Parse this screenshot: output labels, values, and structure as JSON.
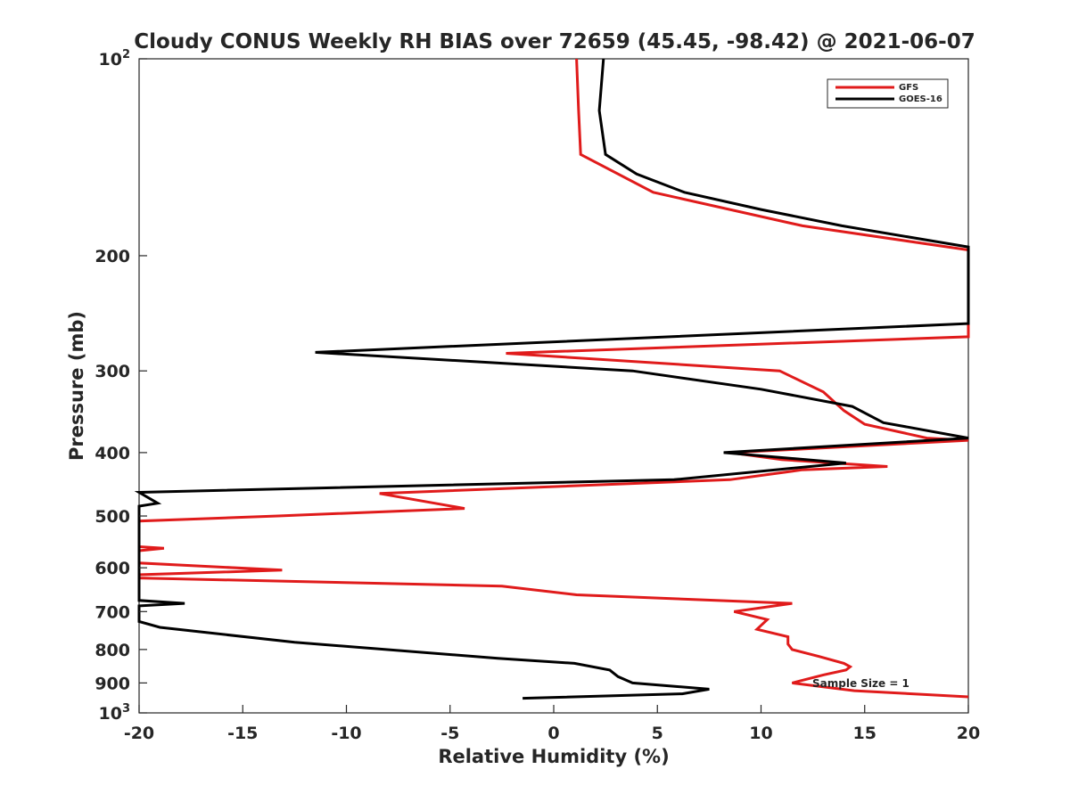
{
  "chart_data": {
    "type": "line",
    "title": "Cloudy CONUS Weekly RH BIAS over 72659 (45.45, -98.42) @ 2021-06-07",
    "xlabel": "Relative Humidity (%)",
    "ylabel": "Pressure (mb)",
    "xlim": [
      -20,
      20
    ],
    "ylim": [
      100,
      1000
    ],
    "yscale": "log",
    "yreversed": true,
    "xticks": [
      "-20",
      "-15",
      "-10",
      "-5",
      "0",
      "5",
      "10",
      "15",
      "20"
    ],
    "xtick_values": [
      -20,
      -15,
      -10,
      -5,
      0,
      5,
      10,
      15,
      20
    ],
    "yticks": [
      {
        "value": 100,
        "base": "10",
        "exp": "2"
      },
      {
        "value": 200,
        "label": "200"
      },
      {
        "value": 300,
        "label": "300"
      },
      {
        "value": 400,
        "label": "400"
      },
      {
        "value": 500,
        "label": "500"
      },
      {
        "value": 600,
        "label": "600"
      },
      {
        "value": 700,
        "label": "700"
      },
      {
        "value": 800,
        "label": "800"
      },
      {
        "value": 900,
        "label": "900"
      },
      {
        "value": 1000,
        "base": "10",
        "exp": "3"
      }
    ],
    "grid": false,
    "legend_position": "top-right",
    "annotation": "Sample Size = 1",
    "series": [
      {
        "name": "GFS",
        "color": "#e01b1b",
        "points": [
          [
            1.1,
            100
          ],
          [
            1.2,
            120
          ],
          [
            1.3,
            140
          ],
          [
            4.8,
            160
          ],
          [
            12.0,
            180
          ],
          [
            20.0,
            196
          ],
          [
            20.0,
            266
          ],
          [
            -2.3,
            282
          ],
          [
            10.9,
            300
          ],
          [
            13.0,
            323
          ],
          [
            14.0,
            345
          ],
          [
            15.0,
            362
          ],
          [
            18.0,
            380
          ],
          [
            20.0,
            383
          ],
          [
            12.0,
            395
          ],
          [
            8.5,
            400
          ],
          [
            11.0,
            410
          ],
          [
            16.1,
            420
          ],
          [
            12.0,
            425
          ],
          [
            8.5,
            440
          ],
          [
            -8.4,
            462
          ],
          [
            -4.3,
            487
          ],
          [
            -13.3,
            500
          ],
          [
            -20.0,
            509
          ],
          [
            -20.0,
            557
          ],
          [
            -18.8,
            560
          ],
          [
            -20.0,
            565
          ],
          [
            -20.0,
            590
          ],
          [
            -13.1,
            605
          ],
          [
            -20.0,
            615
          ],
          [
            -20.0,
            622
          ],
          [
            -2.5,
            640
          ],
          [
            1.1,
            660
          ],
          [
            11.5,
            680
          ],
          [
            8.7,
            700
          ],
          [
            10.3,
            720
          ],
          [
            9.8,
            745
          ],
          [
            11.3,
            765
          ],
          [
            11.3,
            785
          ],
          [
            11.5,
            800
          ],
          [
            12.8,
            820
          ],
          [
            14.0,
            840
          ],
          [
            14.3,
            850
          ],
          [
            14.1,
            860
          ],
          [
            13.0,
            875
          ],
          [
            11.5,
            900
          ],
          [
            14.5,
            925
          ],
          [
            20.0,
            945
          ]
        ]
      },
      {
        "name": "GOES-16",
        "color": "#000000",
        "points": [
          [
            2.4,
            100
          ],
          [
            2.2,
            120
          ],
          [
            2.5,
            140
          ],
          [
            4.0,
            150
          ],
          [
            6.3,
            160
          ],
          [
            10.0,
            170
          ],
          [
            13.9,
            180
          ],
          [
            20.0,
            194
          ],
          [
            20.0,
            254
          ],
          [
            -11.5,
            281
          ],
          [
            3.8,
            300
          ],
          [
            10.0,
            320
          ],
          [
            14.4,
            340
          ],
          [
            15.9,
            360
          ],
          [
            20.0,
            380
          ],
          [
            8.2,
            400
          ],
          [
            14.1,
            415
          ],
          [
            5.8,
            440
          ],
          [
            -20.0,
            460
          ],
          [
            -19.1,
            478
          ],
          [
            -20.0,
            483
          ],
          [
            -20.0,
            673
          ],
          [
            -17.8,
            680
          ],
          [
            -20.0,
            686
          ],
          [
            -20.0,
            694
          ],
          [
            -20.0,
            725
          ],
          [
            -19.0,
            740
          ],
          [
            -12.5,
            780
          ],
          [
            -2.7,
            825
          ],
          [
            1.0,
            840
          ],
          [
            2.7,
            860
          ],
          [
            3.1,
            880
          ],
          [
            3.8,
            900
          ],
          [
            7.5,
            920
          ],
          [
            6.2,
            935
          ],
          [
            -1.5,
            950
          ]
        ]
      }
    ]
  }
}
